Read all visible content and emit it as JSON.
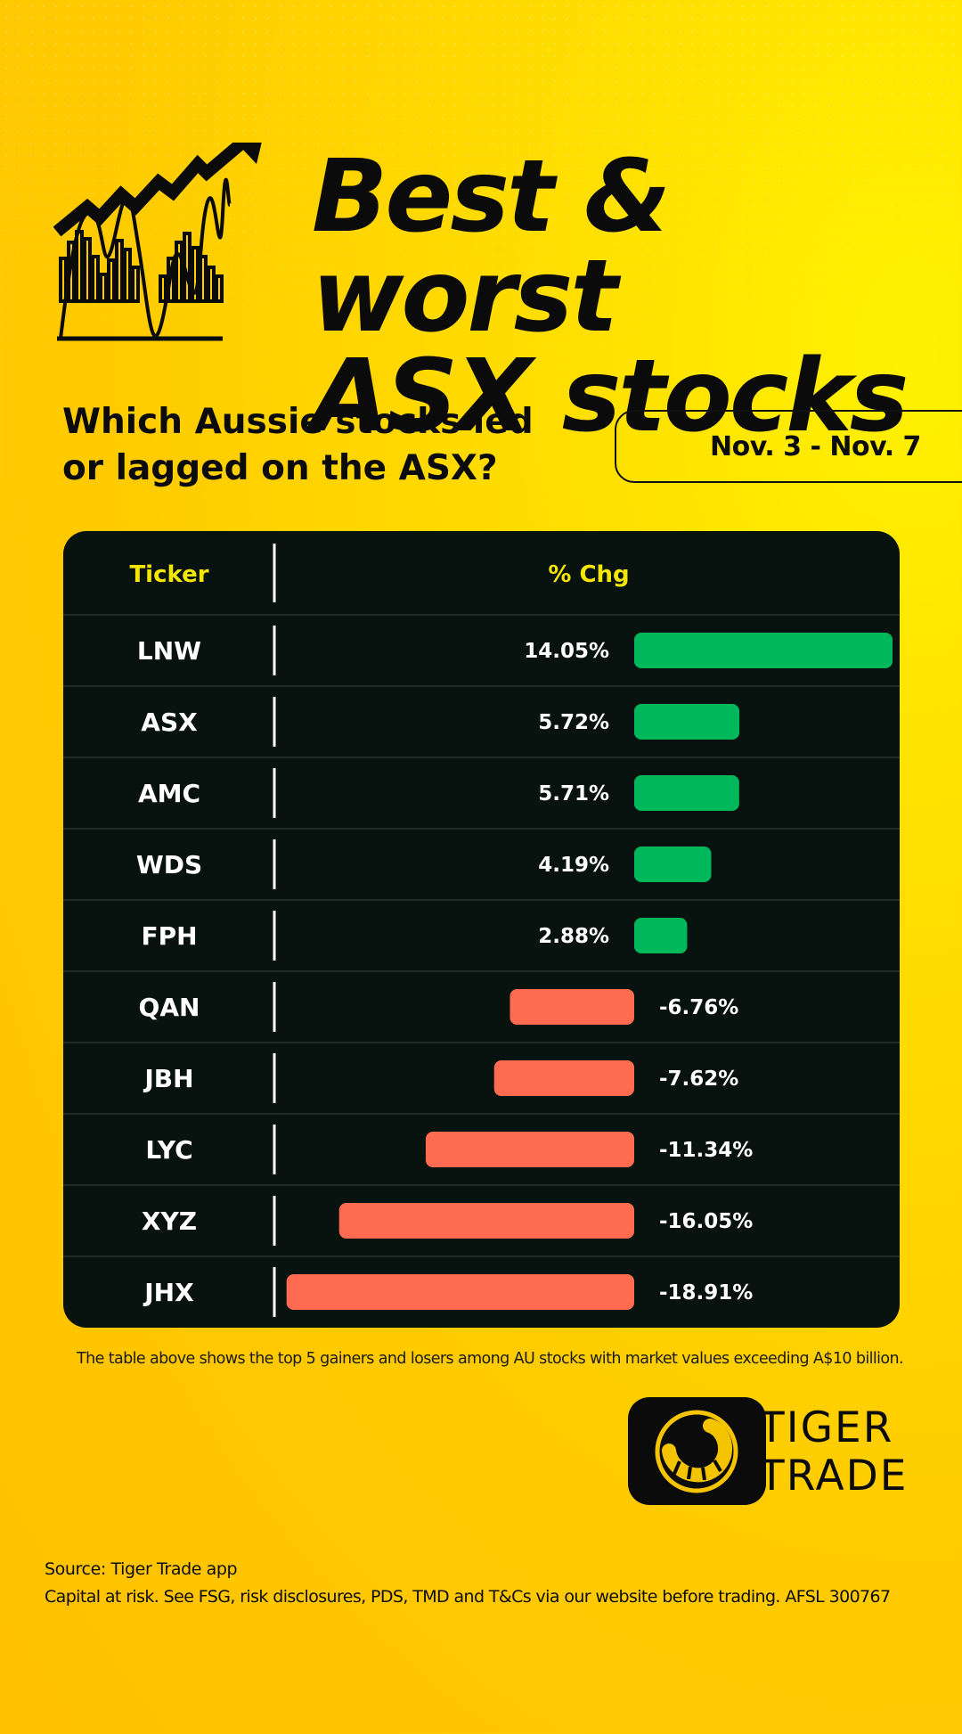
{
  "header": {
    "title_line1": "Best & worst",
    "title_line2": "ASX stocks"
  },
  "subheader": {
    "line1": "Which Aussie stocks led",
    "line2": "or lagged on the ASX?",
    "date_range": "Nov. 3 - Nov. 7"
  },
  "colors": {
    "positive": "#00b85c",
    "negative": "#ff6b50",
    "header_text": "#f5e600",
    "card_bg": "#08120f"
  },
  "chart_data": {
    "type": "bar",
    "orientation": "horizontal",
    "column_headers": [
      "Ticker",
      "% Chg"
    ],
    "categories": [
      "LNW",
      "ASX",
      "AMC",
      "WDS",
      "FPH",
      "QAN",
      "JBH",
      "LYC",
      "XYZ",
      "JHX"
    ],
    "values": [
      14.05,
      5.72,
      5.71,
      4.19,
      2.88,
      -6.76,
      -7.62,
      -11.34,
      -16.05,
      -18.91
    ],
    "value_labels": [
      "14.05%",
      "5.72%",
      "5.71%",
      "4.19%",
      "2.88%",
      "-6.76%",
      "-7.62%",
      "-11.34%",
      "-16.05%",
      "-18.91%"
    ]
  },
  "footnote": "The table above shows the top 5 gainers and losers among AU stocks with market values exceeding A$10 billion.",
  "brand": {
    "line1": "TIGER",
    "line2": "TRADE",
    "icon": "tiger-stripe-icon"
  },
  "footer": {
    "source": "Source: Tiger Trade app",
    "disclaimer": "Capital at risk. See FSG, risk disclosures, PDS, TMD and T&Cs via our website before trading. AFSL 300767"
  }
}
